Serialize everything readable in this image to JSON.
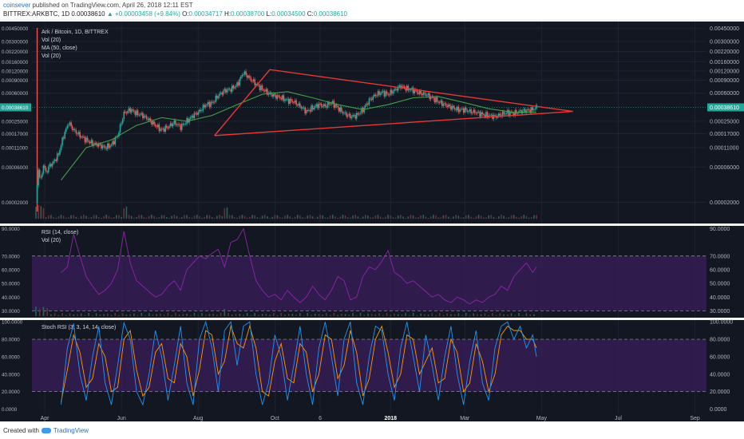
{
  "header": {
    "author": "coinsever",
    "published_text": "published on TradingView.com, April 26, 2018 12:11 EST",
    "symbol": "BITTREX:ARKBTC, 1D",
    "last_price": "0.00038610",
    "change_arrow": "▲",
    "change": "+0.00003458 (+9.84%)",
    "o_label": "O:",
    "o_value": "0.00034717",
    "h_label": "H:",
    "h_value": "0.00038700",
    "l_label": "L:",
    "l_value": "0.00034500",
    "c_label": "C:",
    "c_value": "0.00038610"
  },
  "footer": {
    "created_with": "Created with",
    "tradingview": "TradingView"
  },
  "colors": {
    "background": "#131722",
    "grid": "#1f2333",
    "up": "#26a69a",
    "down": "#ef5350",
    "ma": "#43a047",
    "triangle": "#e53935",
    "rsi": "#8e24aa",
    "rsi_band": "#3b1e5c",
    "stoch_k": "#2196f3",
    "stoch_d": "#ff9800",
    "last_price_badge": "#26a69a",
    "axis_text": "#b2b5be"
  },
  "chart_data": [
    {
      "type": "candlestick",
      "title": "Ark / Bitcoin, 1D, BITTREX",
      "scale": "log",
      "legend": [
        "Ark / Bitcoin, 1D, BITTREX",
        "Vol (20)",
        "MA (50, close)",
        "Vol (20)"
      ],
      "y_ticks": [
        2e-05,
        6e-05,
        0.00011,
        0.00017,
        0.00025,
        0.0003861,
        0.0006,
        0.0009,
        0.0012,
        0.0016,
        0.0022,
        0.003,
        0.0045
      ],
      "y_tick_labels": [
        "0.00002000",
        "0.00006000",
        "0.00011000",
        "0.00017000",
        "0.00025000",
        "0.00038610",
        "0.00060000",
        "0.00090000",
        "0.00120000",
        "0.00160000",
        "0.00220000",
        "0.00300000",
        "0.00450000"
      ],
      "x_ticks": [
        "Apr",
        "Jun",
        "Aug",
        "Oct",
        "6",
        "2018",
        "Mar",
        "May",
        "Jul",
        "Sep"
      ],
      "x_tick_days": [
        7,
        68,
        129,
        190,
        226,
        282,
        341,
        402,
        463,
        524
      ],
      "last_price": 0.0003861,
      "close_series": {
        "x_day": [
          0,
          2,
          4,
          6,
          8,
          10,
          14,
          18,
          22,
          26,
          30,
          35,
          40,
          45,
          50,
          55,
          60,
          65,
          70,
          75,
          80,
          85,
          90,
          95,
          100,
          105,
          110,
          115,
          120,
          125,
          130,
          135,
          140,
          145,
          150,
          155,
          160,
          165,
          170,
          175,
          180,
          185,
          190,
          195,
          200,
          205,
          210,
          215,
          220,
          225,
          230,
          235,
          240,
          245,
          250,
          255,
          260,
          265,
          270,
          275,
          280,
          285,
          290,
          295,
          300,
          305,
          310,
          315,
          320,
          325,
          330,
          335,
          340,
          345,
          350,
          355,
          360,
          365,
          370,
          375,
          380,
          385,
          390,
          395,
          398
        ],
        "close": [
          2e-05,
          5.5e-05,
          4e-05,
          6.5e-05,
          5e-05,
          6e-05,
          7e-05,
          9e-05,
          0.00016,
          0.00024,
          0.00019,
          0.00016,
          0.00014,
          0.000125,
          0.00012,
          0.00011,
          0.00012,
          0.00016,
          0.00032,
          0.00036,
          0.00032,
          0.0003,
          0.00026,
          0.00022,
          0.00019,
          0.00021,
          0.00024,
          0.00021,
          0.00025,
          0.0003,
          0.00034,
          0.00042,
          0.00044,
          0.00056,
          0.00065,
          0.00068,
          0.00078,
          0.00115,
          0.00095,
          0.0008,
          0.00068,
          0.0006,
          0.00055,
          0.00052,
          0.00048,
          0.00046,
          0.0004,
          0.00034,
          0.00038,
          0.00042,
          0.0004,
          0.00045,
          0.00038,
          0.00032,
          0.00029,
          0.0003,
          0.00036,
          0.00048,
          0.00057,
          0.00062,
          0.00058,
          0.00066,
          0.00075,
          0.00069,
          0.00066,
          0.0006,
          0.00058,
          0.00052,
          0.00046,
          0.00042,
          0.00039,
          0.00036,
          0.00036,
          0.00034,
          0.00033,
          0.00031,
          0.0003,
          0.00029,
          0.00031,
          0.00033,
          0.00032,
          0.00034,
          0.00035,
          0.00036,
          0.0003861
        ]
      },
      "ma50": {
        "x_day": [
          20,
          40,
          60,
          80,
          100,
          120,
          140,
          160,
          180,
          200,
          220,
          240,
          260,
          280,
          300,
          320,
          340,
          360,
          380,
          398
        ],
        "value": [
          4e-05,
          0.00011,
          0.00014,
          0.00022,
          0.00028,
          0.00025,
          0.0003,
          0.00042,
          0.00058,
          0.00063,
          0.00052,
          0.00042,
          0.00036,
          0.00042,
          0.00052,
          0.00054,
          0.00045,
          0.00037,
          0.00033,
          0.00033
        ]
      },
      "triangle": {
        "x_day": [
          142,
          186,
          427,
          142
        ],
        "value": [
          0.00016,
          0.00125,
          0.00034,
          0.00016
        ]
      }
    },
    {
      "type": "line",
      "title": "RSI (14, close)",
      "legend": [
        "RSI (14, close)",
        "Vol (20)"
      ],
      "ylim": [
        25,
        92
      ],
      "y_ticks": [
        30,
        40,
        50,
        60,
        70,
        90
      ],
      "y_tick_labels": [
        "30.0000",
        "40.0000",
        "50.0000",
        "60.0000",
        "70.0000",
        "90.0000"
      ],
      "band": [
        30,
        70
      ],
      "series": [
        {
          "x_day": [
            20,
            25,
            30,
            35,
            40,
            45,
            50,
            55,
            60,
            65,
            70,
            75,
            80,
            85,
            90,
            95,
            100,
            105,
            110,
            115,
            120,
            125,
            130,
            135,
            140,
            145,
            150,
            155,
            160,
            165,
            170,
            175,
            180,
            185,
            190,
            195,
            200,
            205,
            210,
            215,
            220,
            225,
            230,
            235,
            240,
            245,
            250,
            255,
            260,
            265,
            270,
            275,
            280,
            285,
            290,
            295,
            300,
            305,
            310,
            315,
            320,
            325,
            330,
            335,
            340,
            345,
            350,
            355,
            360,
            365,
            370,
            375,
            380,
            385,
            390,
            395,
            398
          ],
          "value": [
            58,
            62,
            86,
            70,
            55,
            48,
            42,
            45,
            50,
            60,
            88,
            65,
            52,
            48,
            44,
            40,
            42,
            48,
            52,
            45,
            60,
            65,
            70,
            68,
            72,
            75,
            62,
            80,
            82,
            90,
            70,
            52,
            45,
            40,
            42,
            38,
            45,
            40,
            36,
            40,
            48,
            42,
            38,
            45,
            55,
            52,
            38,
            40,
            55,
            62,
            60,
            66,
            74,
            58,
            55,
            50,
            52,
            48,
            44,
            40,
            42,
            38,
            36,
            40,
            38,
            35,
            38,
            36,
            40,
            42,
            48,
            45,
            55,
            60,
            65,
            58,
            62
          ]
        }
      ]
    },
    {
      "type": "line",
      "title": "Stoch RSI (3, 3, 14, 14, close)",
      "ylim": [
        -5,
        102
      ],
      "y_ticks": [
        0,
        20,
        40,
        60,
        80,
        100
      ],
      "y_tick_labels": [
        "0.0000",
        "20.0000",
        "40.0000",
        "60.0000",
        "80.0000",
        "100.0000"
      ],
      "band": [
        20,
        80
      ],
      "series": [
        {
          "x_day": [
            20,
            25,
            30,
            35,
            40,
            45,
            50,
            55,
            60,
            65,
            70,
            75,
            80,
            85,
            90,
            95,
            100,
            105,
            110,
            115,
            120,
            125,
            130,
            135,
            140,
            145,
            150,
            155,
            160,
            165,
            170,
            175,
            180,
            185,
            190,
            195,
            200,
            205,
            210,
            215,
            220,
            225,
            230,
            235,
            240,
            245,
            250,
            255,
            260,
            265,
            270,
            275,
            280,
            285,
            290,
            295,
            300,
            305,
            310,
            315,
            320,
            325,
            330,
            335,
            340,
            345,
            350,
            355,
            360,
            365,
            370,
            375,
            380,
            385,
            390,
            395,
            398
          ],
          "value": [
            5,
            70,
            98,
            40,
            10,
            60,
            95,
            30,
            5,
            50,
            99,
            80,
            20,
            5,
            40,
            90,
            60,
            10,
            50,
            95,
            30,
            5,
            80,
            100,
            70,
            20,
            90,
            100,
            50,
            95,
            100,
            40,
            5,
            30,
            85,
            60,
            10,
            50,
            95,
            40,
            5,
            70,
            100,
            60,
            15,
            80,
            100,
            30,
            5,
            60,
            95,
            90,
            40,
            10,
            70,
            100,
            60,
            20,
            85,
            50,
            10,
            60,
            95,
            40,
            5,
            55,
            90,
            30,
            10,
            70,
            95,
            100,
            80,
            95,
            70,
            85,
            60
          ]
        },
        {
          "x_day": [
            20,
            25,
            30,
            35,
            40,
            45,
            50,
            55,
            60,
            65,
            70,
            75,
            80,
            85,
            90,
            95,
            100,
            105,
            110,
            115,
            120,
            125,
            130,
            135,
            140,
            145,
            150,
            155,
            160,
            165,
            170,
            175,
            180,
            185,
            190,
            195,
            200,
            205,
            210,
            215,
            220,
            225,
            230,
            235,
            240,
            245,
            250,
            255,
            260,
            265,
            270,
            275,
            280,
            285,
            290,
            295,
            300,
            305,
            310,
            315,
            320,
            325,
            330,
            335,
            340,
            345,
            350,
            355,
            360,
            365,
            370,
            375,
            380,
            385,
            390,
            395,
            398
          ],
          "value": [
            8,
            45,
            85,
            65,
            25,
            35,
            75,
            60,
            20,
            25,
            80,
            90,
            45,
            15,
            25,
            65,
            75,
            35,
            30,
            75,
            60,
            15,
            45,
            90,
            85,
            40,
            55,
            95,
            75,
            70,
            95,
            70,
            20,
            15,
            55,
            75,
            35,
            30,
            75,
            65,
            20,
            40,
            85,
            80,
            35,
            50,
            90,
            65,
            15,
            35,
            80,
            95,
            65,
            25,
            40,
            85,
            80,
            40,
            55,
            70,
            30,
            35,
            80,
            65,
            20,
            30,
            75,
            55,
            20,
            40,
            85,
            95,
            90,
            90,
            80,
            80,
            70
          ]
        }
      ]
    }
  ]
}
